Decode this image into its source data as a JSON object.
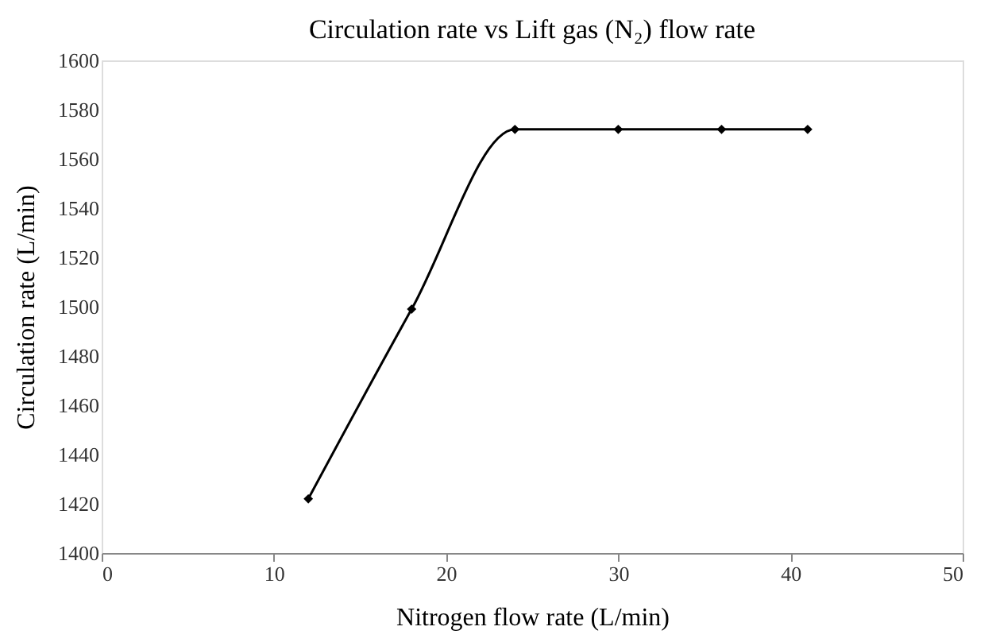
{
  "chart_data": {
    "type": "line",
    "title": "Circulation rate vs Lift gas (N₂) flow rate",
    "xlabel": "Nitrogen flow rate (L/min)",
    "ylabel": "Circulation rate (L/min)",
    "x": [
      12,
      18,
      24,
      30,
      36,
      41
    ],
    "series": [
      {
        "color": "#000000",
        "values": [
          1422,
          1499,
          1572,
          1572,
          1572,
          1572
        ]
      }
    ],
    "xlim": [
      0,
      50
    ],
    "xticks": [
      0,
      10,
      20,
      30,
      40,
      50
    ],
    "ylim": [
      1400,
      1600
    ],
    "yticks": [
      1400,
      1420,
      1440,
      1460,
      1480,
      1500,
      1520,
      1540,
      1560,
      1580,
      1600
    ],
    "grid": false,
    "marker": "diamond",
    "line_style": "solid"
  }
}
